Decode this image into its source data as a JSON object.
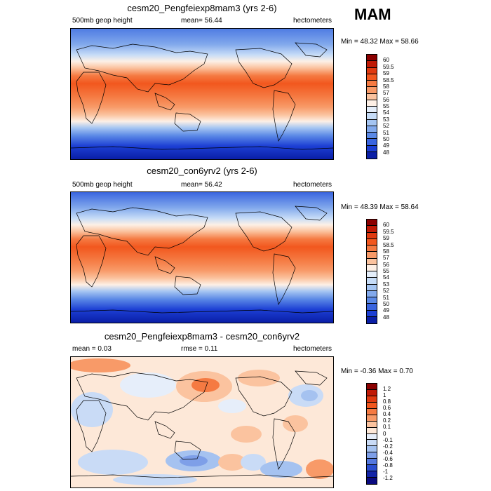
{
  "season": "MAM",
  "colors": {
    "abs_scale": [
      "#8b0000",
      "#c01a06",
      "#e03a10",
      "#f2571e",
      "#f57a42",
      "#f89a68",
      "#fbc39f",
      "#fdf0e6",
      "#e4eefa",
      "#c6dcf7",
      "#a5c5f2",
      "#82a9ec",
      "#5b89e6",
      "#3a65df",
      "#1c3fd4",
      "#0a1ea6"
    ],
    "diff_scale": [
      "#8b0000",
      "#c01a06",
      "#e03a10",
      "#f2571e",
      "#f57a42",
      "#f89a68",
      "#fbc39f",
      "#fde8d8",
      "#e6eefa",
      "#c9dbf6",
      "#a5c2f0",
      "#7e9fe8",
      "#5478df",
      "#2a4ed0",
      "#1224a8",
      "#0a0a80"
    ],
    "land": "#000000"
  },
  "panels": [
    {
      "title": "cesm20_Pengfeiexp8mam3 (yrs 2-6)",
      "left_label": "500mb geop height",
      "center_label": "mean=  56.44",
      "right_label": "hectometers",
      "minmax": "Min = 48.32 Max =  58.66",
      "colorbar_labels": [
        "60",
        "59.5",
        "59",
        "58.5",
        "58",
        "57",
        "56",
        "55",
        "54",
        "53",
        "52",
        "51",
        "50",
        "49",
        "48"
      ]
    },
    {
      "title": "cesm20_con6yrv2 (yrs 2-6)",
      "left_label": "500mb geop height",
      "center_label": "mean=  56.42",
      "right_label": "hectometers",
      "minmax": "Min = 48.39 Max =  58.64",
      "colorbar_labels": [
        "60",
        "59.5",
        "59",
        "58.5",
        "58",
        "57",
        "56",
        "55",
        "54",
        "53",
        "52",
        "51",
        "50",
        "49",
        "48"
      ]
    },
    {
      "title": "cesm20_Pengfeiexp8mam3 - cesm20_con6yrv2",
      "left_label": "mean =   0.03",
      "center_label": "rmse =   0.11",
      "right_label": "hectometers",
      "minmax": "Min = -0.36 Max =   0.70",
      "colorbar_labels": [
        "1.2",
        "1",
        "0.8",
        "0.6",
        "0.4",
        "0.2",
        "0.1",
        "0",
        "-0.1",
        "-0.2",
        "-0.4",
        "-0.6",
        "-0.8",
        "-1",
        "-1.2"
      ]
    }
  ]
}
